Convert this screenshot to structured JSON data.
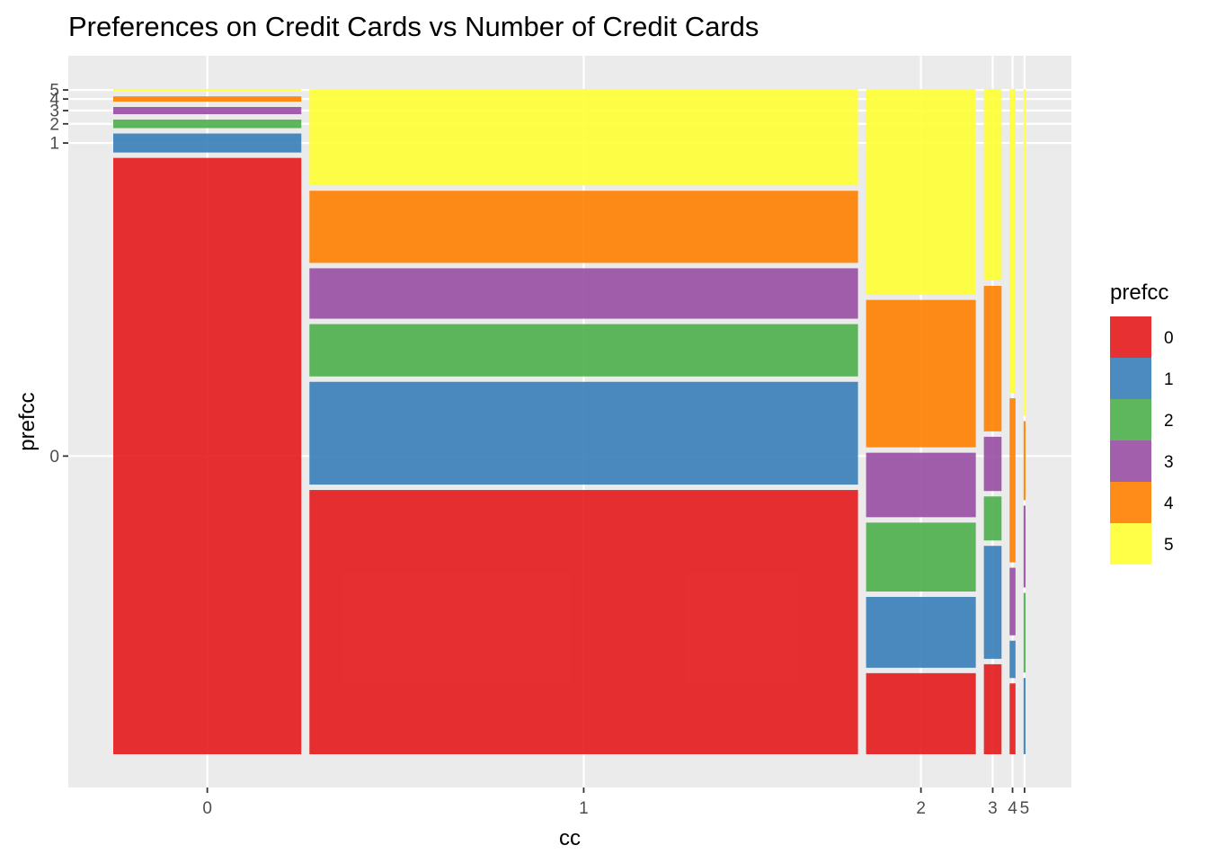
{
  "chart_data": {
    "type": "mosaic",
    "title": "Preferences on Credit Cards vs Number of Credit Cards",
    "xlabel": "cc",
    "ylabel": "prefcc",
    "x_tick_labels": [
      "0",
      "1",
      "2",
      "3",
      "4",
      "5"
    ],
    "y_tick_labels": [
      "0",
      "1",
      "2",
      "3",
      "4",
      "5"
    ],
    "legend": {
      "title": "prefcc",
      "entries": [
        "0",
        "1",
        "2",
        "3",
        "4",
        "5"
      ],
      "position": "right"
    },
    "colors": [
      "#E41A1C",
      "#377EB8",
      "#4DAF4A",
      "#984EA3",
      "#FF7F00",
      "#FFFF33"
    ],
    "background": "#EBEBEB",
    "grid": true,
    "column_shares": [
      0.192,
      0.56,
      0.112,
      0.018,
      0.006,
      0.002
    ],
    "series": [
      {
        "cc": "0",
        "proportions": [
          0.91,
          0.029,
          0.013,
          0.011,
          0.008,
          0.003
        ]
      },
      {
        "cc": "1",
        "proportions": [
          0.414,
          0.161,
          0.082,
          0.079,
          0.113,
          0.151
        ]
      },
      {
        "cc": "2",
        "proportions": [
          0.127,
          0.111,
          0.108,
          0.101,
          0.231,
          0.322
        ]
      },
      {
        "cc": "3",
        "proportions": [
          0.141,
          0.177,
          0.069,
          0.085,
          0.228,
          0.3
        ]
      },
      {
        "cc": "4",
        "proportions": [
          0.11,
          0.058,
          0.0,
          0.105,
          0.255,
          0.472
        ]
      },
      {
        "cc": "5",
        "proportions": [
          0.0,
          0.109,
          0.114,
          0.117,
          0.113,
          0.467
        ]
      }
    ]
  }
}
